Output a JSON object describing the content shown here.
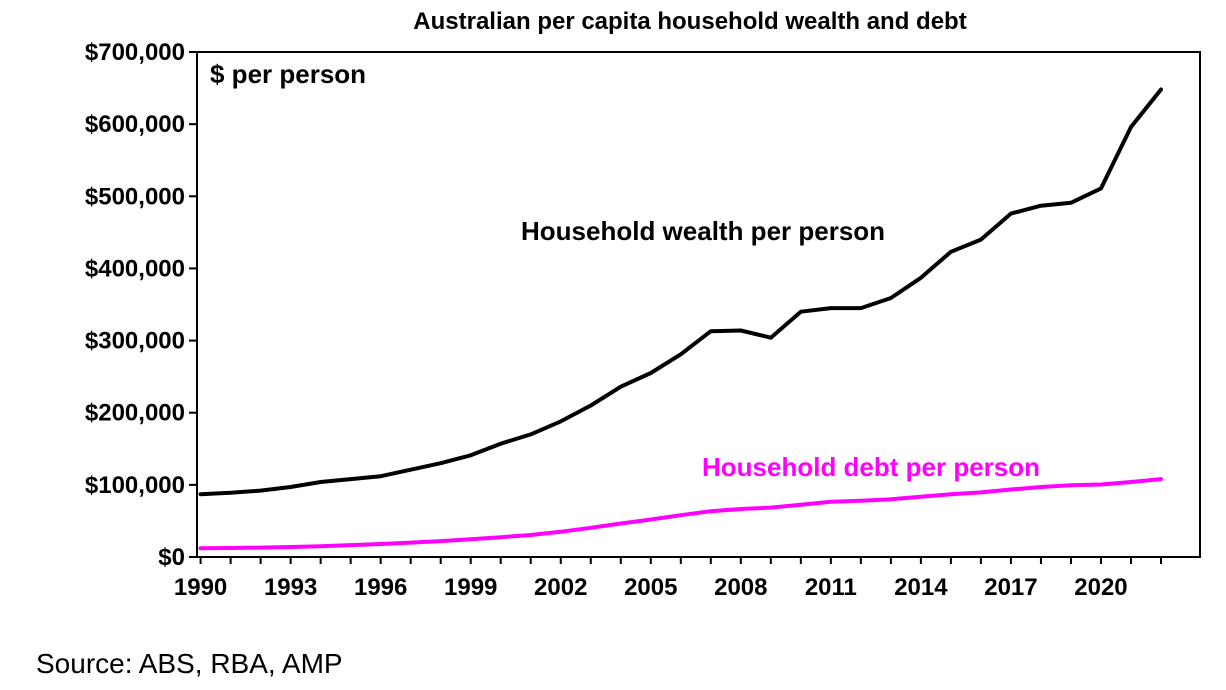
{
  "chart_data": {
    "type": "line",
    "title": "Australian per capita household wealth and debt",
    "unit_label": "$ per person",
    "source": "Source: ABS, RBA, AMP",
    "xlim": [
      1990,
      2022
    ],
    "ylim": [
      0,
      700000
    ],
    "x_ticks": [
      1990,
      1993,
      1996,
      1999,
      2002,
      2005,
      2008,
      2011,
      2014,
      2017,
      2020
    ],
    "y_ticks": [
      {
        "value": 0,
        "label": "$0"
      },
      {
        "value": 100000,
        "label": "$100,000"
      },
      {
        "value": 200000,
        "label": "$200,000"
      },
      {
        "value": 300000,
        "label": "$300,000"
      },
      {
        "value": 400000,
        "label": "$400,000"
      },
      {
        "value": 500000,
        "label": "$500,000"
      },
      {
        "value": 600000,
        "label": "$600,000"
      },
      {
        "value": 700000,
        "label": "$700,000"
      }
    ],
    "grid": false,
    "legend": "none",
    "x": [
      1990,
      1991,
      1992,
      1993,
      1994,
      1995,
      1996,
      1997,
      1998,
      1999,
      2000,
      2001,
      2002,
      2003,
      2004,
      2005,
      2006,
      2007,
      2008,
      2009,
      2010,
      2011,
      2012,
      2013,
      2014,
      2015,
      2016,
      2017,
      2018,
      2019,
      2020,
      2021,
      2022
    ],
    "series": [
      {
        "name": "Household wealth per person",
        "color": "#000000",
        "values": [
          87000,
          89000,
          92000,
          97000,
          104000,
          108000,
          112000,
          121000,
          130000,
          141000,
          157000,
          170000,
          188000,
          210000,
          236000,
          255000,
          281000,
          313000,
          314000,
          304000,
          340000,
          345000,
          345000,
          359000,
          387000,
          423000,
          440000,
          476000,
          487000,
          491000,
          511000,
          596000,
          648000
        ]
      },
      {
        "name": "Household debt per person",
        "color": "#ff00ff",
        "values": [
          12000,
          12500,
          13000,
          13800,
          15000,
          16500,
          18000,
          20000,
          22000,
          24500,
          27500,
          30500,
          35000,
          40500,
          46500,
          52000,
          58000,
          63500,
          66500,
          68500,
          72500,
          76500,
          78000,
          80000,
          83500,
          87000,
          89500,
          93500,
          97000,
          99500,
          100500,
          104000,
          108000
        ]
      }
    ]
  }
}
